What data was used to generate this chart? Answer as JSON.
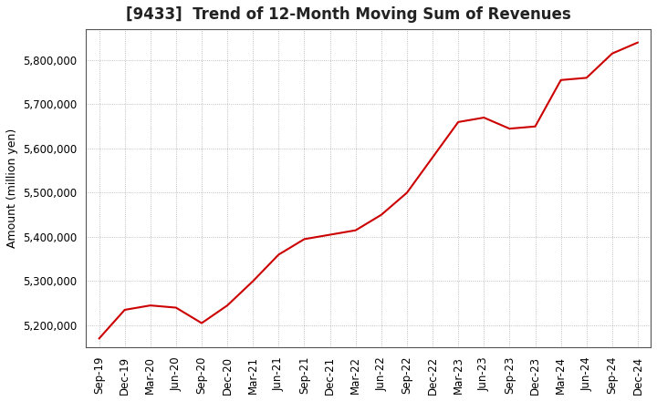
{
  "title": "[9433]  Trend of 12-Month Moving Sum of Revenues",
  "ylabel": "Amount (million yen)",
  "line_color": "#cc0000",
  "background_color": "#ffffff",
  "plot_bg_color": "#ffffff",
  "grid_color": "#999999",
  "x_labels": [
    "Sep-19",
    "Dec-19",
    "Mar-20",
    "Jun-20",
    "Sep-20",
    "Dec-20",
    "Mar-21",
    "Jun-21",
    "Sep-21",
    "Dec-21",
    "Mar-22",
    "Jun-22",
    "Sep-22",
    "Dec-22",
    "Mar-23",
    "Jun-23",
    "Sep-23",
    "Dec-23",
    "Mar-24",
    "Jun-24",
    "Sep-24",
    "Dec-24"
  ],
  "values": [
    5170000,
    5235000,
    5245000,
    5240000,
    5205000,
    5245000,
    5300000,
    5360000,
    5395000,
    5405000,
    5415000,
    5450000,
    5500000,
    5580000,
    5660000,
    5670000,
    5645000,
    5650000,
    5755000,
    5760000,
    5815000,
    5840000
  ],
  "ylim": [
    5150000,
    5870000
  ],
  "yticks": [
    5200000,
    5300000,
    5400000,
    5500000,
    5600000,
    5700000,
    5800000
  ],
  "title_fontsize": 12,
  "label_fontsize": 9,
  "tick_fontsize": 8.5
}
